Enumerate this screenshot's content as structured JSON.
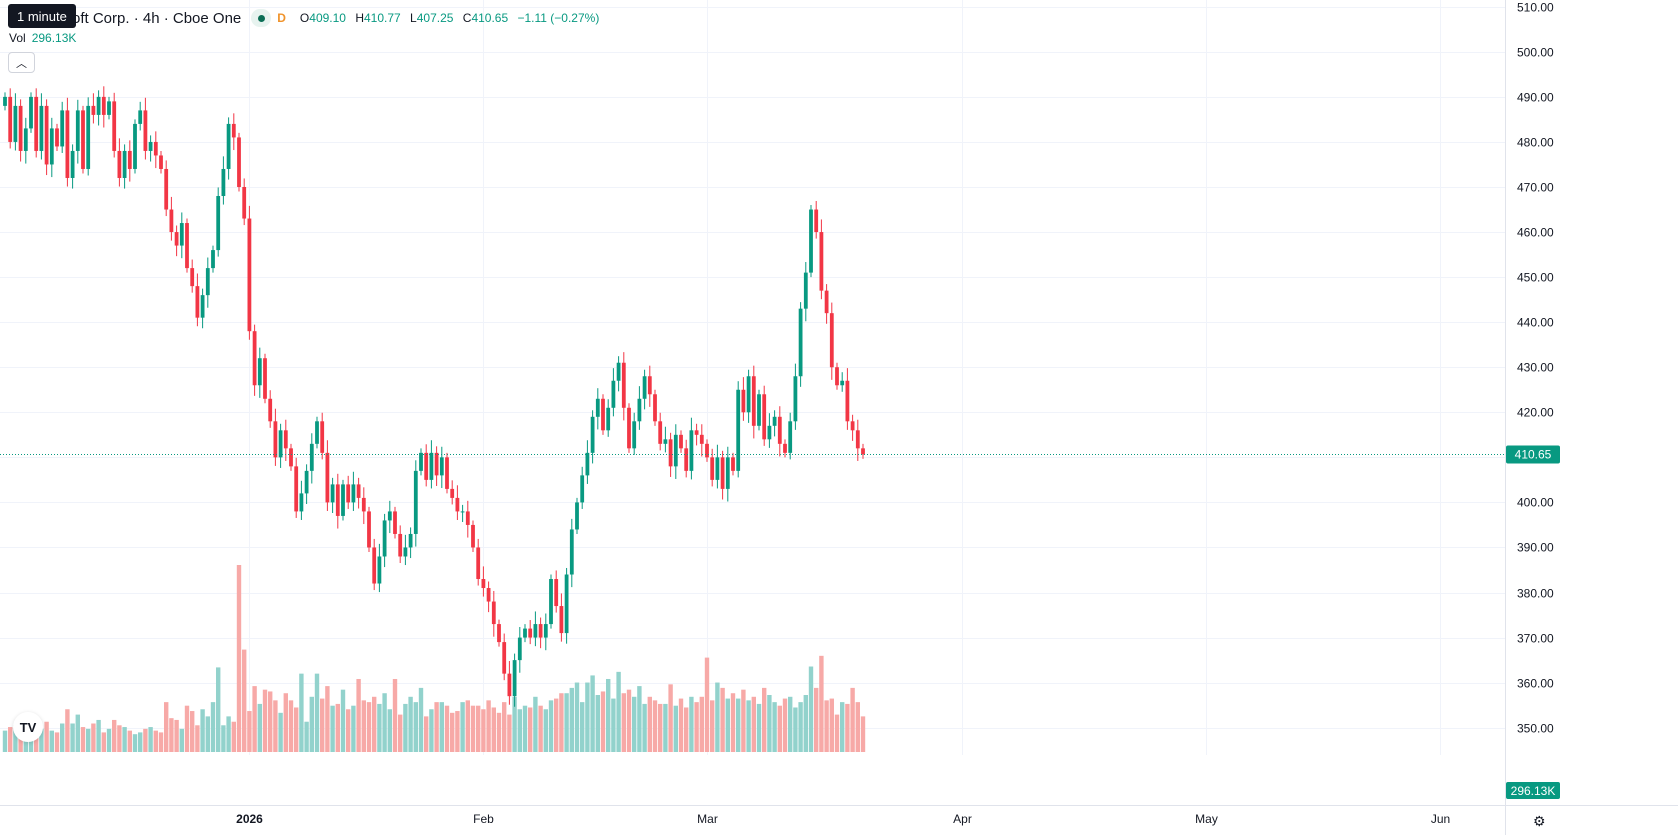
{
  "header": {
    "tooltip": "1 minute",
    "symbol_text": "oft Corp. · 4h · Cboe One",
    "interval_badge": "D",
    "ohlc": {
      "open_label": "O",
      "open": "409.10",
      "high_label": "H",
      "high": "410.77",
      "low_label": "L",
      "low": "407.25",
      "close_label": "C",
      "close": "410.65",
      "change": "−1.11 (−0.27%)"
    },
    "volume_label": "Vol",
    "volume_value": "296.13K",
    "collapse_icon": "chevron-up-icon",
    "logo_icon": "tradingview-logo-icon",
    "logo_text": "TV",
    "settings_icon": "gear-icon"
  },
  "colors": {
    "up": "#089981",
    "down": "#f23645",
    "up_volume": "#92d2cc",
    "down_volume": "#f7a9a7",
    "grid": "#f0f3fa",
    "axis_text": "#131722"
  },
  "chart_data": {
    "type": "candlestick",
    "interval": "4h",
    "y_axis": {
      "ticks": [
        510,
        500,
        490,
        480,
        470,
        460,
        450,
        440,
        430,
        420,
        410,
        400,
        390,
        380,
        370,
        360,
        350
      ],
      "tick_labels": [
        "510.00",
        "500.00",
        "490.00",
        "480.00",
        "470.00",
        "460.00",
        "450.00",
        "440.00",
        "430.00",
        "420.00",
        "410.00",
        "400.00",
        "390.00",
        "380.00",
        "370.00",
        "360.00",
        "350.00"
      ],
      "ylim": [
        343.5,
        511.5
      ],
      "last_price": 410.65,
      "last_price_label": "410.65",
      "volume_label": "296.13K"
    },
    "x_axis": {
      "labels": [
        {
          "label": "2026",
          "index": 47
        },
        {
          "label": "Feb",
          "index": 92
        },
        {
          "label": "Mar",
          "index": 135
        },
        {
          "label": "Apr",
          "index": 184
        },
        {
          "label": "May",
          "index": 231
        },
        {
          "label": "Jun",
          "index": 276
        }
      ]
    },
    "volume_max": 210,
    "path": [
      490,
      480,
      488,
      478,
      483,
      490,
      478,
      488,
      475,
      483,
      479,
      487,
      472,
      478,
      487,
      474,
      488,
      486,
      490,
      486,
      489,
      478,
      472,
      478,
      474,
      484,
      487,
      478,
      480,
      477,
      474,
      465,
      460,
      457,
      462,
      452,
      448,
      441,
      446,
      452,
      456,
      468,
      474,
      484,
      481,
      470,
      463,
      438,
      426,
      432,
      423,
      418,
      410,
      416,
      412,
      408,
      398,
      402,
      407,
      413,
      418,
      411,
      400,
      404,
      397,
      404,
      400,
      404,
      401,
      398,
      390,
      382,
      388,
      396,
      398,
      393,
      388,
      390,
      393,
      407,
      411,
      405,
      411,
      406,
      410,
      403,
      401,
      398,
      398,
      395,
      390,
      383,
      381,
      378,
      373,
      369,
      362,
      357,
      365,
      370,
      372,
      370,
      373,
      370,
      373,
      383,
      377,
      371,
      384,
      394,
      400,
      406,
      411,
      419,
      423,
      416,
      421,
      427,
      431,
      421,
      412,
      418,
      423,
      428,
      424,
      418,
      413,
      414,
      408,
      415,
      412,
      407,
      416,
      415,
      413,
      410,
      405,
      410,
      403,
      410,
      407,
      425,
      420,
      428,
      417,
      424,
      414,
      417,
      419,
      413,
      411,
      418,
      428,
      443,
      451,
      465,
      460,
      447,
      442,
      430,
      426,
      427,
      418,
      416,
      412,
      410.65
    ],
    "volumes": [
      24,
      28,
      30,
      18,
      26,
      28,
      22,
      26,
      34,
      24,
      22,
      32,
      48,
      32,
      42,
      28,
      26,
      32,
      36,
      22,
      26,
      36,
      30,
      28,
      24,
      20,
      22,
      26,
      28,
      24,
      22,
      56,
      38,
      36,
      26,
      52,
      46,
      30,
      48,
      40,
      56,
      95,
      30,
      40,
      34,
      210,
      115,
      46,
      74,
      54,
      70,
      68,
      58,
      44,
      66,
      58,
      50,
      88,
      34,
      62,
      88,
      60,
      74,
      52,
      54,
      70,
      48,
      52,
      82,
      58,
      56,
      62,
      54,
      66,
      48,
      82,
      42,
      54,
      62,
      56,
      72,
      40,
      48,
      56,
      56,
      52,
      44,
      46,
      56,
      58,
      52,
      52,
      48,
      58,
      50,
      44,
      56,
      42,
      62,
      48,
      52,
      50,
      62,
      52,
      48,
      58,
      60,
      66,
      66,
      72,
      78,
      56,
      78,
      86,
      64,
      68,
      82,
      60,
      90,
      66,
      70,
      62,
      74,
      54,
      62,
      58,
      54,
      54,
      76,
      52,
      60,
      50,
      62,
      56,
      62,
      106,
      58,
      78,
      72,
      60,
      66,
      60,
      70,
      58,
      62,
      54,
      72,
      64,
      56,
      52,
      60,
      62,
      50,
      56,
      64,
      96,
      72,
      108,
      58,
      60,
      42,
      56,
      54,
      72,
      56,
      40
    ]
  }
}
